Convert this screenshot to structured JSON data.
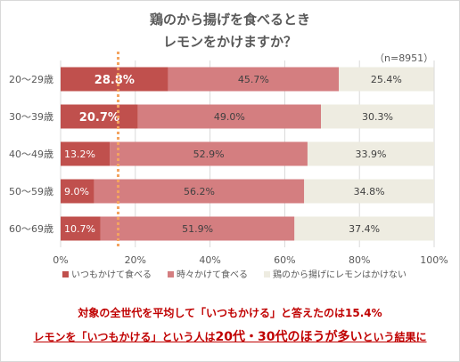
{
  "chart_data": {
    "type": "bar",
    "orientation": "horizontal",
    "stacked": true,
    "title_lines": [
      "鶏のから揚げを食べるとき",
      "レモンをかけますか？"
    ],
    "sample_label": "（n=8951）",
    "categories": [
      "20～29歳",
      "30～39歳",
      "40～49歳",
      "50～59歳",
      "60～69歳"
    ],
    "series": [
      {
        "name": "いつもかけて食べる",
        "values": [
          28.8,
          20.7,
          13.2,
          9.0,
          10.7
        ],
        "labels": [
          "28.8%",
          "20.7%",
          "13.2%",
          "9.0%",
          "10.7%"
        ],
        "color": "#c0504d",
        "label_color": "#ffffff"
      },
      {
        "name": "時々かけて食べる",
        "values": [
          45.7,
          49.0,
          52.9,
          56.2,
          51.9
        ],
        "labels": [
          "45.7%",
          "49.0%",
          "52.9%",
          "56.2%",
          "51.9%"
        ],
        "color": "#d47e80",
        "label_color": "#404040"
      },
      {
        "name": "鶏のから揚げにレモンはかけない",
        "values": [
          25.4,
          30.3,
          33.9,
          34.8,
          37.4
        ],
        "labels": [
          "25.4%",
          "30.3%",
          "33.9%",
          "34.8%",
          "37.4%"
        ],
        "color": "#eeece1",
        "label_color": "#404040"
      }
    ],
    "bold_labels": [
      [
        true,
        true
      ],
      [
        true,
        true
      ]
    ],
    "x_ticks": [
      "0%",
      "20%",
      "40%",
      "60%",
      "80%",
      "100%"
    ],
    "xlim": [
      0,
      100
    ],
    "grid": true,
    "average_line": 15.4,
    "average_line_color": "#f4a460",
    "legend_position": "bottom"
  },
  "notes": {
    "line1": "対象の全世代を平均して「いつもかける」と答えたのは15.4%",
    "line2_a": "レモンを「いつもかける」という人は",
    "line2_b": "20代・30代のほうが多い",
    "line2_c": "という結果に"
  }
}
